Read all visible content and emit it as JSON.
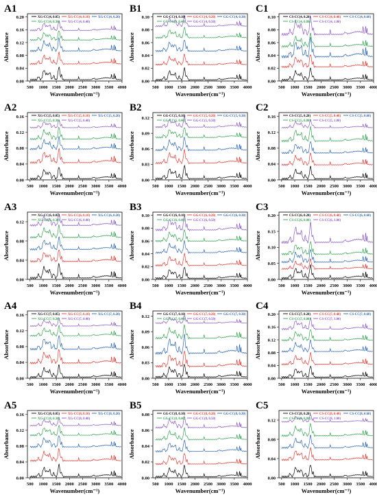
{
  "figure": {
    "xlabel": "Wavenumber(cm⁻¹)",
    "ylabel": "Absorbance",
    "xticks": [
      "500",
      "1000",
      "1500",
      "2000",
      "2500",
      "3000",
      "3500",
      "4000"
    ]
  },
  "colors": [
    "#000000",
    "#e8372f",
    "#2a64b6",
    "#2ea34d",
    "#8a56c7"
  ],
  "chart_data": [
    {
      "panel": "A1",
      "type": "line",
      "xlim": [
        400,
        4000
      ],
      "yticks": [
        "0.00",
        "0.04",
        "0.08",
        "0.12",
        "0.16",
        "0.20"
      ],
      "ylim": [
        0,
        0.21
      ],
      "series": [
        {
          "name": "XG-CC(4, 0.05)",
          "offset": 0.0,
          "amp": 0.04
        },
        {
          "name": "XG-CC(4, 0.10)",
          "offset": 0.05,
          "amp": 0.035
        },
        {
          "name": "XG-CC(4, 0.20)",
          "offset": 0.09,
          "amp": 0.04
        },
        {
          "name": "XG-CC(4, 0.30)",
          "offset": 0.125,
          "amp": 0.03
        },
        {
          "name": "XG-CC(4, 0.40)",
          "offset": 0.155,
          "amp": 0.03
        }
      ]
    },
    {
      "panel": "B1",
      "type": "line",
      "xlim": [
        400,
        4000
      ],
      "yticks": [
        "0.00",
        "0.02",
        "0.04",
        "0.06",
        "0.08",
        "0.10"
      ],
      "ylim": [
        0,
        0.105
      ],
      "series": [
        {
          "name": "GG-CC(4, 0.10)",
          "offset": 0.0,
          "amp": 0.018
        },
        {
          "name": "GG-CC(4, 0.20)",
          "offset": 0.024,
          "amp": 0.016
        },
        {
          "name": "GG-CC(4, 0.30)",
          "offset": 0.045,
          "amp": 0.018
        },
        {
          "name": "GG-CC(4, 0.40)",
          "offset": 0.066,
          "amp": 0.016
        },
        {
          "name": "GG-CC(4, 0.50)",
          "offset": 0.084,
          "amp": 0.016
        }
      ]
    },
    {
      "panel": "C1",
      "type": "line",
      "xlim": [
        400,
        4000
      ],
      "yticks": [
        "0.00",
        "0.02",
        "0.04",
        "0.06",
        "0.08",
        "0.10"
      ],
      "ylim": [
        0,
        0.105
      ],
      "series": [
        {
          "name": "CS-CC(4, 0.20)",
          "offset": 0.0,
          "amp": 0.018
        },
        {
          "name": "CS-CC(4, 0.40)",
          "offset": 0.02,
          "amp": 0.02
        },
        {
          "name": "CS-CC(4, 0.60)",
          "offset": 0.035,
          "amp": 0.03
        },
        {
          "name": "CS-CC(4, 0.80)",
          "offset": 0.052,
          "amp": 0.02
        },
        {
          "name": "CS-CC(4, 1.00)",
          "offset": 0.07,
          "amp": 0.028
        }
      ]
    },
    {
      "panel": "A2",
      "type": "line",
      "xlim": [
        400,
        4000
      ],
      "yticks": [
        "0.00",
        "0.04",
        "0.08",
        "0.12",
        "0.16"
      ],
      "ylim": [
        0,
        0.17
      ],
      "series": [
        {
          "name": "XG-CC(5, 0.05)",
          "offset": 0.0,
          "amp": 0.03
        },
        {
          "name": "XG-CC(5, 0.10)",
          "offset": 0.04,
          "amp": 0.035
        },
        {
          "name": "XG-CC(5, 0.20)",
          "offset": 0.075,
          "amp": 0.03
        },
        {
          "name": "XG-CC(5, 0.30)",
          "offset": 0.1,
          "amp": 0.03
        },
        {
          "name": "XG-CC(5, 0.40)",
          "offset": 0.13,
          "amp": 0.02
        }
      ]
    },
    {
      "panel": "B2",
      "type": "line",
      "xlim": [
        400,
        4000
      ],
      "yticks": [
        "0.00",
        "0.03",
        "0.06",
        "0.09",
        "0.12"
      ],
      "ylim": [
        0,
        0.13
      ],
      "series": [
        {
          "name": "GG-CC(5, 0.10)",
          "offset": 0.0,
          "amp": 0.025
        },
        {
          "name": "GG-CC(5, 0.20)",
          "offset": 0.03,
          "amp": 0.025
        },
        {
          "name": "GG-CC(5, 0.30)",
          "offset": 0.055,
          "amp": 0.025
        },
        {
          "name": "GG-CC(5, 0.40)",
          "offset": 0.08,
          "amp": 0.02
        },
        {
          "name": "GG-CC(5, 0.50)",
          "offset": 0.1,
          "amp": 0.02
        }
      ]
    },
    {
      "panel": "C2",
      "type": "line",
      "xlim": [
        400,
        4000
      ],
      "yticks": [
        "0.00",
        "0.04",
        "0.08",
        "0.12",
        "0.16"
      ],
      "ylim": [
        0,
        0.17
      ],
      "series": [
        {
          "name": "CS-CC(5, 0.20)",
          "offset": 0.0,
          "amp": 0.03
        },
        {
          "name": "CS-CC(5, 0.40)",
          "offset": 0.035,
          "amp": 0.03
        },
        {
          "name": "CS-CC(5, 0.60)",
          "offset": 0.065,
          "amp": 0.03
        },
        {
          "name": "CS-CC(5, 0.80)",
          "offset": 0.095,
          "amp": 0.035
        },
        {
          "name": "CS-CC(5, 1.00)",
          "offset": 0.13,
          "amp": 0.02
        }
      ]
    },
    {
      "panel": "A3",
      "type": "line",
      "xlim": [
        400,
        4000
      ],
      "yticks": [
        "0.00",
        "0.04",
        "0.08",
        "0.12"
      ],
      "ylim": [
        0,
        0.14
      ],
      "series": [
        {
          "name": "XG-CC(6, 0.05)",
          "offset": 0.0,
          "amp": 0.03
        },
        {
          "name": "XG-CC(6, 0.10)",
          "offset": 0.035,
          "amp": 0.025
        },
        {
          "name": "XG-CC(6, 0.20)",
          "offset": 0.06,
          "amp": 0.025
        },
        {
          "name": "XG-CC(6, 0.30)",
          "offset": 0.085,
          "amp": 0.025
        },
        {
          "name": "XG-CC(6, 0.40)",
          "offset": 0.11,
          "amp": 0.025
        }
      ]
    },
    {
      "panel": "B3",
      "type": "line",
      "xlim": [
        400,
        4000
      ],
      "yticks": [
        "0.00",
        "0.02",
        "0.04",
        "0.06",
        "0.08",
        "0.10"
      ],
      "ylim": [
        0,
        0.105
      ],
      "series": [
        {
          "name": "GG-CC(6, 0.10)",
          "offset": 0.0,
          "amp": 0.018
        },
        {
          "name": "GG-CC(6, 0.20)",
          "offset": 0.02,
          "amp": 0.018
        },
        {
          "name": "GG-CC(6, 0.30)",
          "offset": 0.04,
          "amp": 0.018
        },
        {
          "name": "GG-CC(6, 0.40)",
          "offset": 0.058,
          "amp": 0.018
        },
        {
          "name": "GG-CC(6, 0.50)",
          "offset": 0.075,
          "amp": 0.022
        }
      ]
    },
    {
      "panel": "C3",
      "type": "line",
      "xlim": [
        400,
        4000
      ],
      "yticks": [
        "0.00",
        "0.05",
        "0.10",
        "0.15",
        "0.20"
      ],
      "ylim": [
        0,
        0.21
      ],
      "series": [
        {
          "name": "CS-CC(6, 0.20)",
          "offset": 0.0,
          "amp": 0.04
        },
        {
          "name": "CS-CC(6, 0.40)",
          "offset": 0.03,
          "amp": 0.03
        },
        {
          "name": "CS-CC(6, 0.60)",
          "offset": 0.05,
          "amp": 0.04
        },
        {
          "name": "CS-CC(6, 0.80)",
          "offset": 0.075,
          "amp": 0.04
        },
        {
          "name": "CS-CC(6, 1.00)",
          "offset": 0.11,
          "amp": 0.06
        }
      ]
    },
    {
      "panel": "A4",
      "type": "line",
      "xlim": [
        400,
        4000
      ],
      "yticks": [
        "0.00",
        "0.04",
        "0.08",
        "0.12",
        "0.16"
      ],
      "ylim": [
        0,
        0.17
      ],
      "series": [
        {
          "name": "XG-CC(7, 0.05)",
          "offset": 0.0,
          "amp": 0.03
        },
        {
          "name": "XG-CC(7, 0.10)",
          "offset": 0.035,
          "amp": 0.035
        },
        {
          "name": "XG-CC(7, 0.20)",
          "offset": 0.07,
          "amp": 0.035
        },
        {
          "name": "XG-CC(7, 0.30)",
          "offset": 0.105,
          "amp": 0.025
        },
        {
          "name": "XG-CC(7, 0.40)",
          "offset": 0.13,
          "amp": 0.02
        }
      ]
    },
    {
      "panel": "B4",
      "type": "line",
      "xlim": [
        400,
        4000
      ],
      "yticks": [
        "0.00",
        "0.03",
        "0.06",
        "0.09",
        "0.12"
      ],
      "ylim": [
        0,
        0.13
      ],
      "series": [
        {
          "name": "GG-CC(7, 0.10)",
          "offset": 0.0,
          "amp": 0.025
        },
        {
          "name": "GG-CC(7, 0.20)",
          "offset": 0.02,
          "amp": 0.03
        },
        {
          "name": "GG-CC(7, 0.30)",
          "offset": 0.045,
          "amp": 0.035
        },
        {
          "name": "GG-CC(7, 0.40)",
          "offset": 0.075,
          "amp": 0.025
        },
        {
          "name": "GG-CC(7, 0.50)",
          "offset": 0.105,
          "amp": 0.015
        }
      ]
    },
    {
      "panel": "C4",
      "type": "line",
      "xlim": [
        400,
        4000
      ],
      "yticks": [
        "0.00",
        "0.04",
        "0.08",
        "0.12",
        "0.16",
        "0.20"
      ],
      "ylim": [
        0,
        0.21
      ],
      "series": [
        {
          "name": "CS-CC(7, 0.20)",
          "offset": 0.0,
          "amp": 0.035
        },
        {
          "name": "CS-CC(7, 0.40)",
          "offset": 0.04,
          "amp": 0.035
        },
        {
          "name": "CS-CC(7, 0.60)",
          "offset": 0.08,
          "amp": 0.035
        },
        {
          "name": "CS-CC(7, 0.80)",
          "offset": 0.115,
          "amp": 0.035
        },
        {
          "name": "CS-CC(7, 1.00)",
          "offset": 0.15,
          "amp": 0.035
        }
      ]
    },
    {
      "panel": "A5",
      "type": "line",
      "xlim": [
        400,
        4000
      ],
      "yticks": [
        "0.00",
        "0.04",
        "0.08",
        "0.12",
        "0.16"
      ],
      "ylim": [
        0,
        0.17
      ],
      "series": [
        {
          "name": "XG-CC(8, 0.05)",
          "offset": 0.0,
          "amp": 0.03
        },
        {
          "name": "XG-CC(8, 0.10)",
          "offset": 0.04,
          "amp": 0.03
        },
        {
          "name": "XG-CC(8, 0.20)",
          "offset": 0.075,
          "amp": 0.03
        },
        {
          "name": "XG-CC(8, 0.30)",
          "offset": 0.105,
          "amp": 0.025
        },
        {
          "name": "XG-CC(8, 0.40)",
          "offset": 0.13,
          "amp": 0.02
        }
      ]
    },
    {
      "panel": "B5",
      "type": "line",
      "xlim": [
        400,
        4000
      ],
      "yticks": [
        "0.00",
        "0.02",
        "0.04",
        "0.06",
        "0.08"
      ],
      "ylim": [
        0,
        0.085
      ],
      "series": [
        {
          "name": "GG-CC(8, 0.10)",
          "offset": 0.0,
          "amp": 0.014
        },
        {
          "name": "GG-CC(8, 0.20)",
          "offset": 0.016,
          "amp": 0.014
        },
        {
          "name": "GG-CC(8, 0.30)",
          "offset": 0.032,
          "amp": 0.014
        },
        {
          "name": "GG-CC(8, 0.40)",
          "offset": 0.047,
          "amp": 0.014
        },
        {
          "name": "GG-CC(8, 0.50)",
          "offset": 0.062,
          "amp": 0.014
        }
      ]
    },
    {
      "panel": "C5",
      "type": "line",
      "xlim": [
        400,
        4000
      ],
      "yticks": [
        "0.00",
        "0.04",
        "0.08",
        "0.12"
      ],
      "ylim": [
        0,
        0.14
      ],
      "series": [
        {
          "name": "CS-CC(8, 0.20)",
          "offset": 0.0,
          "amp": 0.025
        },
        {
          "name": "CS-CC(8, 0.40)",
          "offset": 0.035,
          "amp": 0.025
        },
        {
          "name": "CS-CC(8, 0.60)",
          "offset": 0.06,
          "amp": 0.025
        },
        {
          "name": "CS-CC(8, 0.80)",
          "offset": 0.085,
          "amp": 0.025
        },
        {
          "name": "CS-CC(8, 1.00)",
          "offset": 0.115,
          "amp": 0.015
        }
      ]
    }
  ]
}
